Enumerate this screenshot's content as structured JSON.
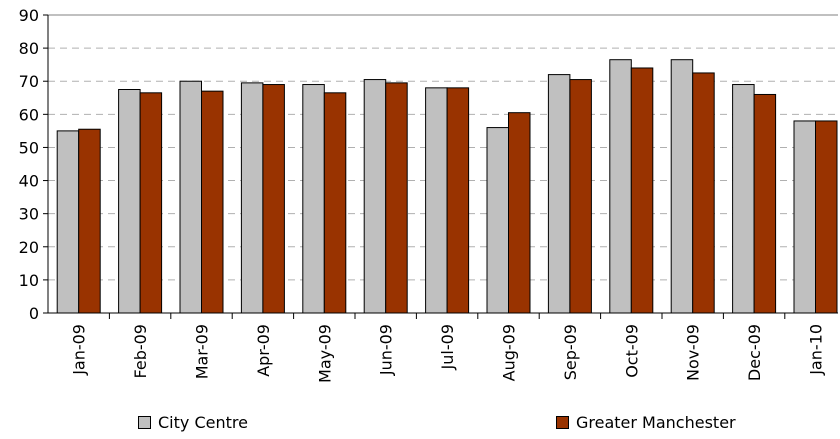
{
  "chart_data": {
    "type": "bar",
    "categories": [
      "Jan-09",
      "Feb-09",
      "Mar-09",
      "Apr-09",
      "May-09",
      "Jun-09",
      "Jul-09",
      "Aug-09",
      "Sep-09",
      "Oct-09",
      "Nov-09",
      "Dec-09",
      "Jan-10"
    ],
    "series": [
      {
        "name": "City Centre",
        "color": "#c0c0c0",
        "values": [
          55,
          67.5,
          70,
          69.5,
          69,
          70.5,
          68,
          56,
          72,
          76.5,
          76.5,
          69,
          58
        ]
      },
      {
        "name": "Greater Manchester",
        "color": "#993300",
        "values": [
          55.5,
          66.5,
          67,
          69,
          66.5,
          69.5,
          68,
          60.5,
          70.5,
          74,
          72.5,
          66,
          58
        ]
      }
    ],
    "yticks": [
      "0",
      "10",
      "20",
      "30",
      "40",
      "50",
      "60",
      "70",
      "80",
      "90"
    ],
    "ylim": [
      0,
      90
    ],
    "grid": "horizontal dashed",
    "legend_position": "bottom"
  }
}
